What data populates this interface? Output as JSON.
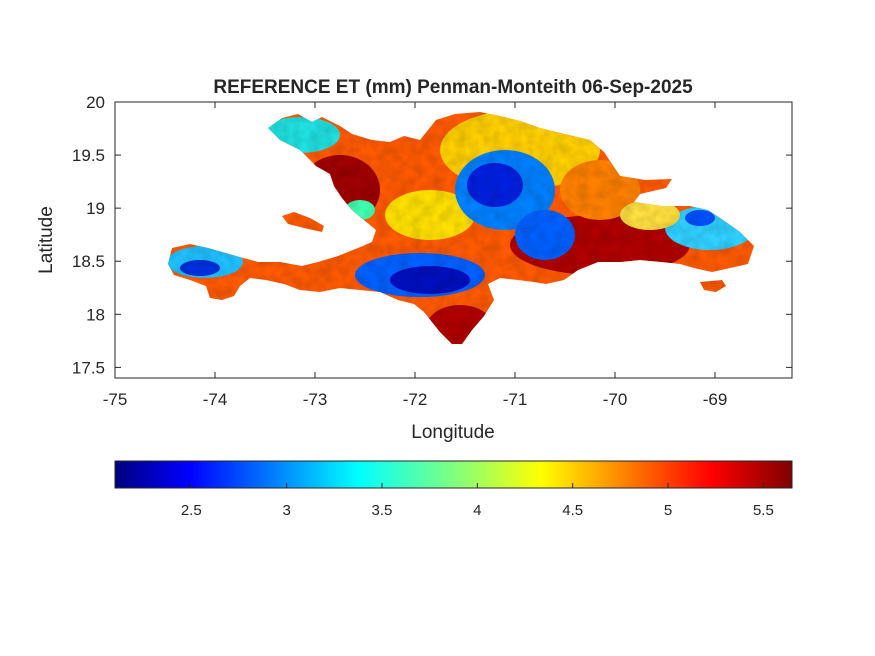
{
  "map": {
    "title": "REFERENCE ET (mm) Penman-Monteith 06-Sep-2025",
    "xlabel": "Longitude",
    "ylabel": "Latitude",
    "xlim": [
      -75,
      -68.23
    ],
    "ylim": [
      17.4,
      20
    ],
    "x_ticks": [
      -75,
      -74,
      -73,
      -72,
      -71,
      -70,
      -69
    ],
    "x_tick_labels": [
      "-75",
      "-74",
      "-73",
      "-72",
      "-71",
      "-70",
      "-69"
    ],
    "y_ticks": [
      17.5,
      18,
      18.5,
      19,
      19.5,
      20
    ],
    "y_tick_labels": [
      "17.5",
      "18",
      "18.5",
      "19",
      "19.5",
      "20"
    ],
    "grid": false,
    "colormap": "jet",
    "colors": {
      "low": "#00007f",
      "mid": "#7fff7f",
      "high": "#7f0000",
      "background": "#ffffff",
      "axis": "#262626"
    }
  },
  "colorbar": {
    "orientation": "horizontal",
    "placement": "below",
    "range": [
      2.1,
      5.65
    ],
    "ticks": [
      2.5,
      3,
      3.5,
      4,
      4.5,
      5,
      5.5
    ],
    "tick_labels": [
      "2.5",
      "3",
      "3.5",
      "4",
      "4.5",
      "5",
      "5.5"
    ]
  }
}
